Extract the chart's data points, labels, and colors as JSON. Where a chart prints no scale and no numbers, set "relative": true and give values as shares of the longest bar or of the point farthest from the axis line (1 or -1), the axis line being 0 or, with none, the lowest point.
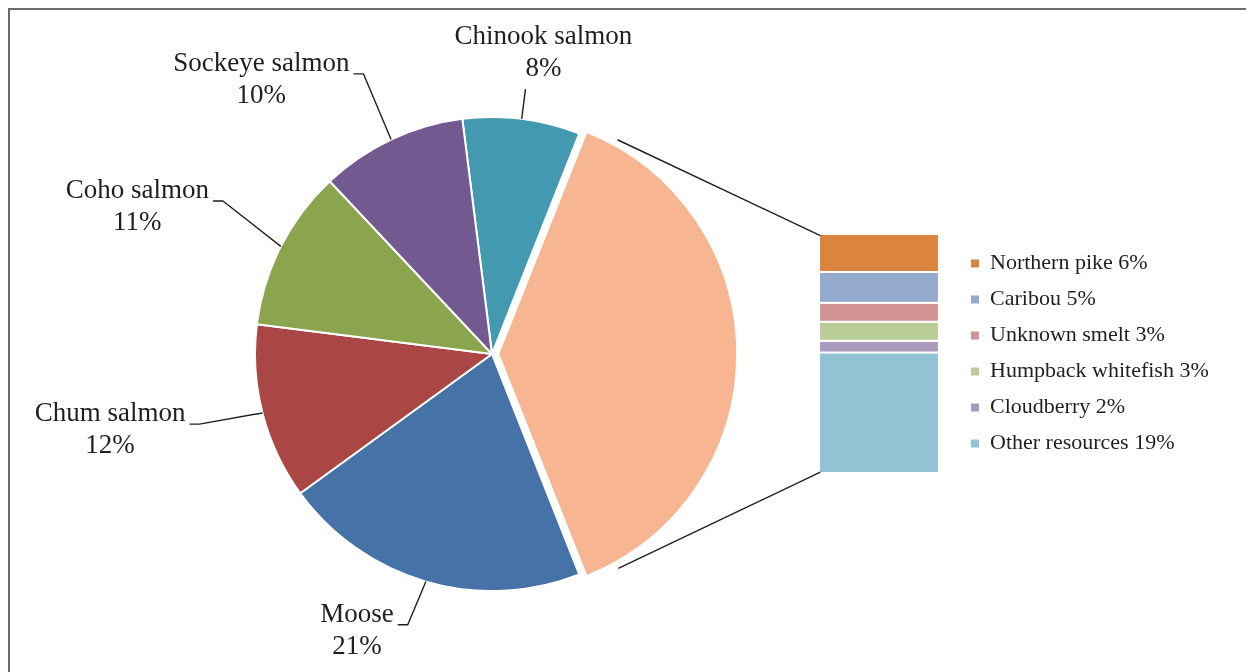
{
  "chart_data": [
    {
      "type": "pie",
      "categories": [
        "Chinook salmon",
        null,
        "Moose",
        "Chum salmon",
        "Coho salmon",
        "Sockeye salmon"
      ],
      "values": [
        8,
        38,
        21,
        12,
        11,
        10
      ],
      "colors": [
        "#4299b0",
        "#f8b592",
        "#4572a7",
        "#aa4644",
        "#8ba54f",
        "#725990"
      ],
      "value_labels": [
        "8%",
        null,
        "21%",
        "12%",
        "11%",
        "10%"
      ]
    },
    {
      "type": "bar",
      "stacked": true,
      "relative": true,
      "categories": [
        null
      ],
      "series": [
        {
          "name": "Other resources 19%",
          "color": "#92c3d4",
          "values": [
            0.5
          ]
        },
        {
          "name": "Cloudberry 2%",
          "color": "#a89bbd",
          "values": [
            0.05
          ]
        },
        {
          "name": "Humpback whitefish 3%",
          "color": "#b9ce96",
          "values": [
            0.08
          ]
        },
        {
          "name": "Unknown smelt 3%",
          "color": "#d29393",
          "values": [
            0.08
          ]
        },
        {
          "name": "Caribou 5%",
          "color": "#93a9ce",
          "values": [
            0.13
          ]
        },
        {
          "name": "Northern pike 6%",
          "color": "#db843d",
          "values": [
            0.16
          ]
        }
      ],
      "tick_labels": false,
      "legend": "right"
    }
  ]
}
